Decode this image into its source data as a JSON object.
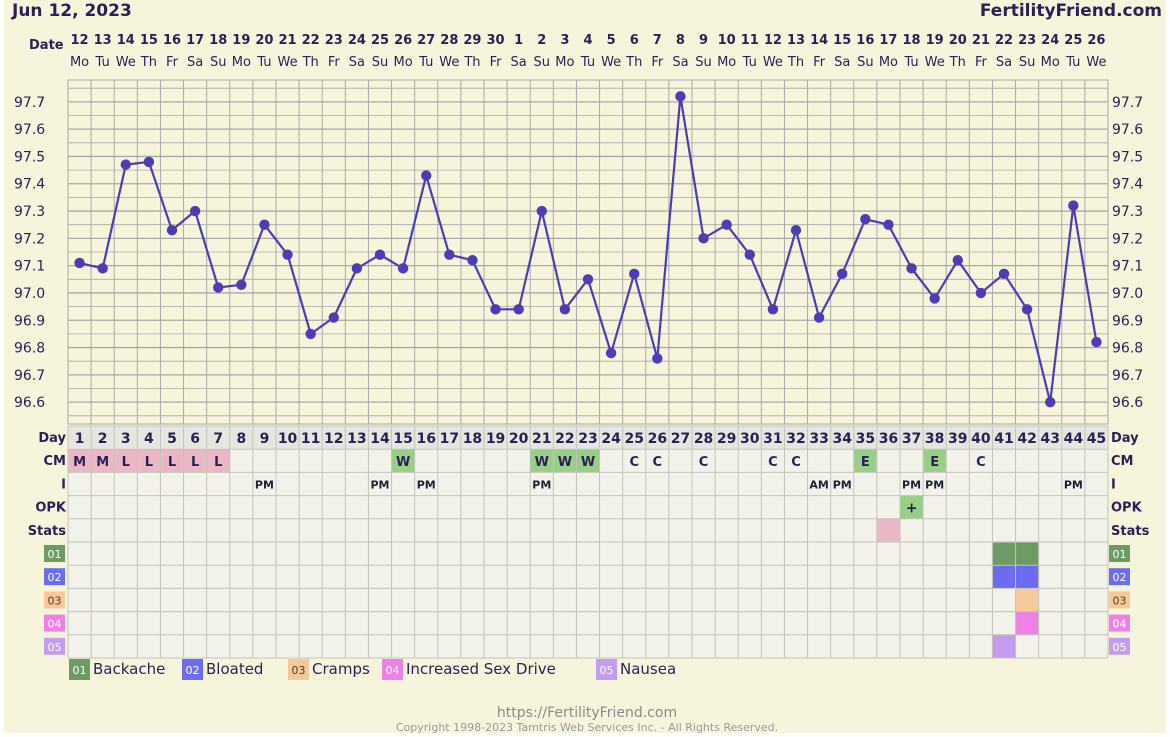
{
  "header": {
    "date": "Jun 12, 2023",
    "site": "FertilityFriend.com"
  },
  "labels": {
    "date": "Date",
    "day": "Day",
    "cm": "CM",
    "intercourse": "I",
    "opk": "OPK",
    "stats": "Stats"
  },
  "footer": {
    "url": "https://FertilityFriend.com",
    "copyright": "Copyright 1998-2023 Tamtris Web Services Inc. - All Rights Reserved."
  },
  "colors": {
    "background": "#f7f4dc",
    "grid": "#a8a8a8",
    "line": "#4b3db5",
    "text": "#2b1f55",
    "table_bg": "#f3f2ea",
    "menses": "#eab7c4",
    "fertile": "#98cf88"
  },
  "chart_data": {
    "type": "line",
    "dates": [
      "12",
      "13",
      "14",
      "15",
      "16",
      "17",
      "18",
      "19",
      "20",
      "21",
      "22",
      "23",
      "24",
      "25",
      "26",
      "27",
      "28",
      "29",
      "30",
      "1",
      "2",
      "3",
      "4",
      "5",
      "6",
      "7",
      "8",
      "9",
      "10",
      "11",
      "12",
      "13",
      "14",
      "15",
      "16",
      "17",
      "18",
      "19",
      "20",
      "21",
      "22",
      "23",
      "24",
      "25",
      "26"
    ],
    "weekdays": [
      "Mo",
      "Tu",
      "We",
      "Th",
      "Fr",
      "Sa",
      "Su",
      "Mo",
      "Tu",
      "We",
      "Th",
      "Fr",
      "Sa",
      "Su",
      "Mo",
      "Tu",
      "We",
      "Th",
      "Fr",
      "Sa",
      "Su",
      "Mo",
      "Tu",
      "We",
      "Th",
      "Fr",
      "Sa",
      "Su",
      "Mo",
      "Tu",
      "We",
      "Th",
      "Fr",
      "Sa",
      "Su",
      "Mo",
      "Tu",
      "We",
      "Th",
      "Fr",
      "Sa",
      "Su",
      "Mo",
      "Tu",
      "We"
    ],
    "days": [
      1,
      2,
      3,
      4,
      5,
      6,
      7,
      8,
      9,
      10,
      11,
      12,
      13,
      14,
      15,
      16,
      17,
      18,
      19,
      20,
      21,
      22,
      23,
      24,
      25,
      26,
      27,
      28,
      29,
      30,
      31,
      32,
      33,
      34,
      35,
      36,
      37,
      38,
      39,
      40,
      41,
      42,
      43,
      44,
      45
    ],
    "temperatures": [
      97.11,
      97.09,
      97.47,
      97.48,
      97.23,
      97.3,
      97.02,
      97.03,
      97.25,
      97.14,
      96.85,
      96.91,
      97.09,
      97.14,
      97.09,
      97.43,
      97.14,
      97.12,
      96.94,
      96.94,
      97.3,
      96.94,
      97.05,
      96.78,
      97.07,
      96.76,
      97.72,
      97.2,
      97.25,
      97.14,
      96.94,
      97.23,
      96.91,
      97.07,
      97.27,
      97.25,
      97.09,
      96.98,
      97.12,
      97.0,
      97.07,
      96.94,
      96.6,
      97.32,
      96.82
    ],
    "y_ticks": [
      "97.7",
      "97.6",
      "97.5",
      "97.4",
      "97.3",
      "97.2",
      "97.1",
      "97.0",
      "96.9",
      "96.8",
      "96.7",
      "96.6"
    ],
    "ylim": [
      96.52,
      97.78
    ],
    "grid": true,
    "cm": [
      "M",
      "M",
      "L",
      "L",
      "L",
      "L",
      "L",
      "",
      "",
      "",
      "",
      "",
      "",
      "",
      "W",
      "",
      "",
      "",
      "",
      "",
      "W",
      "W",
      "W",
      "",
      "C",
      "C",
      "",
      "C",
      "",
      "",
      "C",
      "C",
      "",
      "",
      "E",
      "",
      "",
      "E",
      "",
      "C",
      "",
      "",
      "",
      "",
      ""
    ],
    "intercourse": [
      "",
      "",
      "",
      "",
      "",
      "",
      "",
      "",
      "PM",
      "",
      "",
      "",
      "",
      "PM",
      "",
      "PM",
      "",
      "",
      "",
      "",
      "PM",
      "",
      "",
      "",
      "",
      "",
      "",
      "",
      "",
      "",
      "",
      "",
      "AM",
      "PM",
      "",
      "",
      "PM",
      "PM",
      "",
      "",
      "",
      "",
      "",
      "PM",
      ""
    ],
    "opk": [
      "",
      "",
      "",
      "",
      "",
      "",
      "",
      "",
      "",
      "",
      "",
      "",
      "",
      "",
      "",
      "",
      "",
      "",
      "",
      "",
      "",
      "",
      "",
      "",
      "",
      "",
      "",
      "",
      "",
      "",
      "",
      "",
      "",
      "",
      "",
      "",
      "+",
      "",
      "",
      "",
      "",
      "",
      "",
      "",
      ""
    ],
    "stats_marked_days": [
      36
    ],
    "symptoms": [
      {
        "code": "01",
        "name": "Backache",
        "color": "#6e9a63",
        "days": [
          41,
          42
        ]
      },
      {
        "code": "02",
        "name": "Bloated",
        "color": "#6c6cf0",
        "days": [
          41,
          42
        ]
      },
      {
        "code": "03",
        "name": "Cramps",
        "color": "#f5c99a",
        "days": [
          42
        ]
      },
      {
        "code": "04",
        "name": "Increased Sex Drive",
        "color": "#ee82e4",
        "days": [
          42
        ]
      },
      {
        "code": "05",
        "name": "Nausea",
        "color": "#c39cf0",
        "days": [
          41
        ]
      }
    ]
  }
}
